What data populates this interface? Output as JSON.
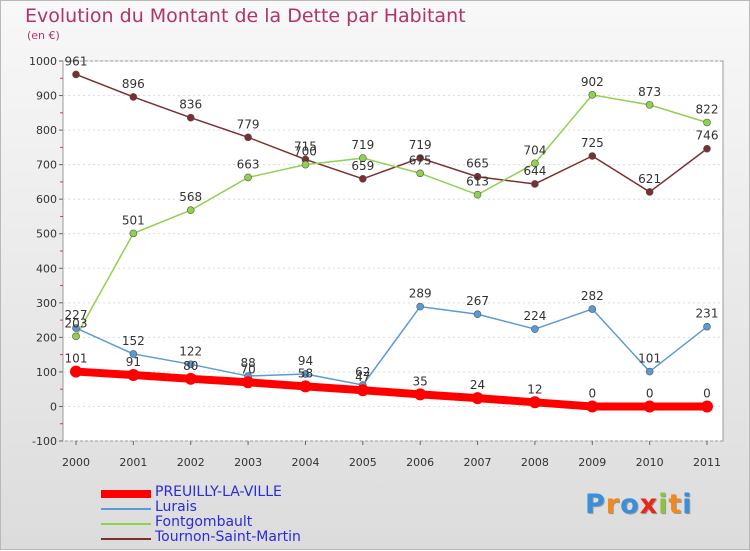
{
  "title": "Evolution du Montant de la Dette par Habitant",
  "subtitle": "(en €)",
  "logo_text": "Proxiti",
  "chart_data": {
    "type": "line",
    "title": "Evolution du Montant de la Dette par Habitant",
    "subtitle": "(en €)",
    "ylim": [
      -100,
      1000
    ],
    "yticks": [
      -100,
      0,
      100,
      200,
      300,
      400,
      500,
      600,
      700,
      800,
      900,
      1000
    ],
    "x": [
      "2000",
      "2001",
      "2002",
      "2003",
      "2004",
      "2005",
      "2006",
      "2007",
      "2008",
      "2009",
      "2010",
      "2011"
    ],
    "legend_position": "bottom-left",
    "series": [
      {
        "name": "PREUILLY-LA-VILLE",
        "color": "#ff0000",
        "values": [
          101,
          91,
          80,
          70,
          58,
          47,
          35,
          24,
          12,
          0,
          0,
          0
        ]
      },
      {
        "name": "Lurais",
        "color": "#5b9bd5",
        "values": [
          227,
          152,
          122,
          88,
          94,
          62,
          289,
          267,
          224,
          282,
          101,
          231
        ]
      },
      {
        "name": "Fontgombault",
        "color": "#92d050",
        "values": [
          203,
          501,
          568,
          663,
          700,
          719,
          675,
          613,
          704,
          902,
          873,
          822
        ]
      },
      {
        "name": "Tournon-Saint-Martin",
        "color": "#7b2f2f",
        "values": [
          961,
          896,
          836,
          779,
          715,
          659,
          719,
          665,
          644,
          725,
          621,
          746
        ]
      }
    ]
  }
}
